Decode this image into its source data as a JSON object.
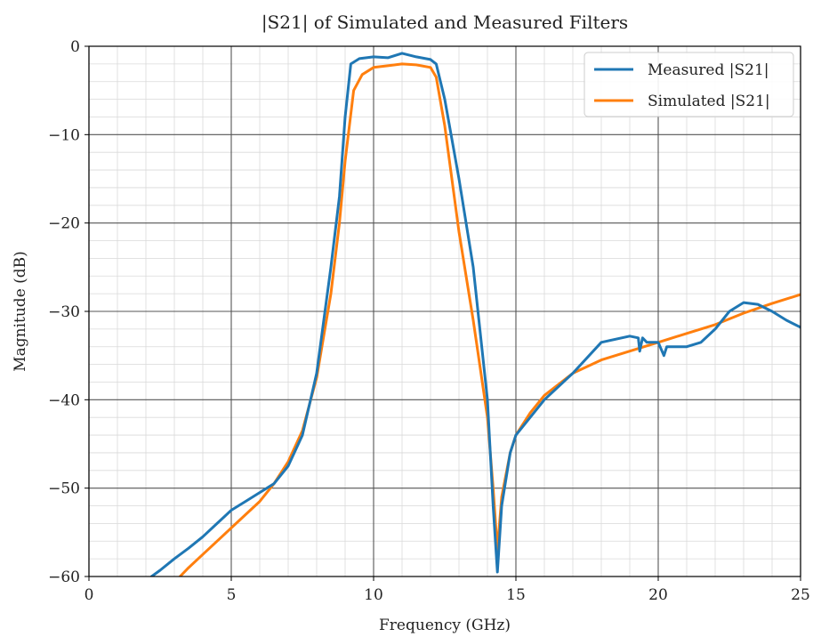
{
  "chart_data": {
    "type": "line",
    "title": "|S21| of Simulated and Measured Filters",
    "xlabel": "Frequency (GHz)",
    "ylabel": "Magnitude (dB)",
    "xlim": [
      0,
      25
    ],
    "ylim": [
      -60,
      0
    ],
    "xticks": [
      0,
      5,
      10,
      15,
      20,
      25
    ],
    "yticks": [
      0,
      -10,
      -20,
      -30,
      -40,
      -50,
      -60
    ],
    "xtick_labels": [
      "0",
      "5",
      "10",
      "15",
      "20",
      "25"
    ],
    "ytick_labels": [
      "0",
      "−10",
      "−20",
      "−30",
      "−40",
      "−50",
      "−60"
    ],
    "grid": "major and minor",
    "legend_position": "top-right",
    "series": [
      {
        "name": "Measured |S21|",
        "color": "#1f77b4",
        "x": [
          2.2,
          2.5,
          3.0,
          3.5,
          4.0,
          4.5,
          5.0,
          5.5,
          6.0,
          6.5,
          7.0,
          7.5,
          8.0,
          8.5,
          8.8,
          9.0,
          9.2,
          9.5,
          10.0,
          10.5,
          11.0,
          11.5,
          12.0,
          12.2,
          12.5,
          13.0,
          13.5,
          14.0,
          14.2,
          14.35,
          14.5,
          14.8,
          15.0,
          15.5,
          16.0,
          17.0,
          18.0,
          19.0,
          19.3,
          19.35,
          19.45,
          19.6,
          20.0,
          20.2,
          20.3,
          20.5,
          21.0,
          21.5,
          22.0,
          22.5,
          23.0,
          23.5,
          24.0,
          24.5,
          25.0
        ],
        "y": [
          -60,
          -59.3,
          -58,
          -56.8,
          -55.5,
          -54,
          -52.5,
          -51.5,
          -50.5,
          -49.5,
          -47.5,
          -44,
          -37,
          -25,
          -17,
          -8,
          -2,
          -1.4,
          -1.2,
          -1.3,
          -0.8,
          -1.2,
          -1.5,
          -2,
          -6,
          -15,
          -25,
          -40,
          -52,
          -59.5,
          -52,
          -46,
          -44,
          -42,
          -40,
          -37,
          -33.5,
          -32.8,
          -33,
          -34.5,
          -33,
          -33.5,
          -33.5,
          -35,
          -34,
          -34,
          -34,
          -33.5,
          -32,
          -30,
          -29,
          -29.2,
          -30,
          -31,
          -31.8
        ]
      },
      {
        "name": "Simulated |S21|",
        "color": "#ff7f0e",
        "x": [
          3.2,
          3.5,
          4.0,
          4.5,
          5.0,
          5.5,
          6.0,
          6.5,
          7.0,
          7.5,
          8.0,
          8.5,
          8.8,
          9.0,
          9.3,
          9.6,
          10.0,
          10.5,
          11.0,
          11.5,
          12.0,
          12.2,
          12.5,
          13.0,
          13.5,
          14.0,
          14.2,
          14.35,
          14.5,
          14.8,
          15.0,
          15.5,
          16.0,
          17.0,
          18.0,
          19.0,
          20.0,
          21.0,
          22.0,
          23.0,
          24.0,
          25.0
        ],
        "y": [
          -60,
          -59,
          -57.5,
          -56,
          -54.5,
          -53,
          -51.5,
          -49.5,
          -47,
          -43.5,
          -37.5,
          -28,
          -20,
          -13,
          -5,
          -3.2,
          -2.4,
          -2.2,
          -2.0,
          -2.1,
          -2.4,
          -3.5,
          -9,
          -21,
          -31,
          -42,
          -50,
          -57,
          -51,
          -46,
          -44,
          -41.5,
          -39.5,
          -37,
          -35.5,
          -34.5,
          -33.5,
          -32.5,
          -31.5,
          -30.2,
          -29.1,
          -28.1
        ]
      }
    ]
  }
}
